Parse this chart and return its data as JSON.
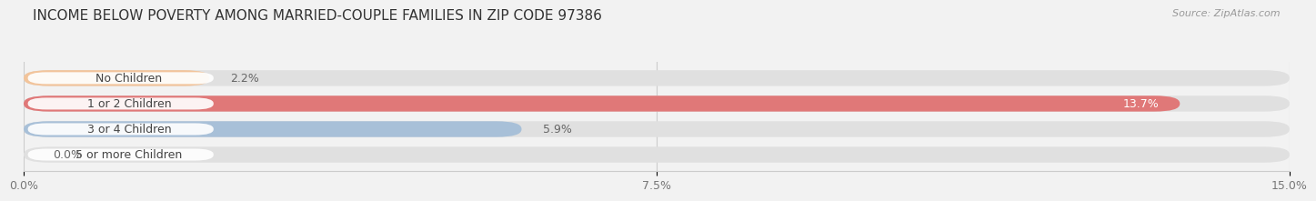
{
  "title": "INCOME BELOW POVERTY AMONG MARRIED-COUPLE FAMILIES IN ZIP CODE 97386",
  "source": "Source: ZipAtlas.com",
  "categories": [
    "No Children",
    "1 or 2 Children",
    "3 or 4 Children",
    "5 or more Children"
  ],
  "values": [
    2.2,
    13.7,
    5.9,
    0.0
  ],
  "bar_colors": [
    "#f2c49b",
    "#e07878",
    "#a8c0d8",
    "#c8b4d8"
  ],
  "label_bg_color": "#ffffff",
  "background_color": "#f2f2f2",
  "bar_background_color": "#e0e0e0",
  "xlim": [
    0,
    15.0
  ],
  "xticks": [
    0.0,
    7.5,
    15.0
  ],
  "xtick_labels": [
    "0.0%",
    "7.5%",
    "15.0%"
  ],
  "label_fontsize": 9,
  "title_fontsize": 11,
  "value_fontsize": 9,
  "bar_height": 0.62,
  "bar_label_color": "#666666",
  "text_color": "#444444"
}
